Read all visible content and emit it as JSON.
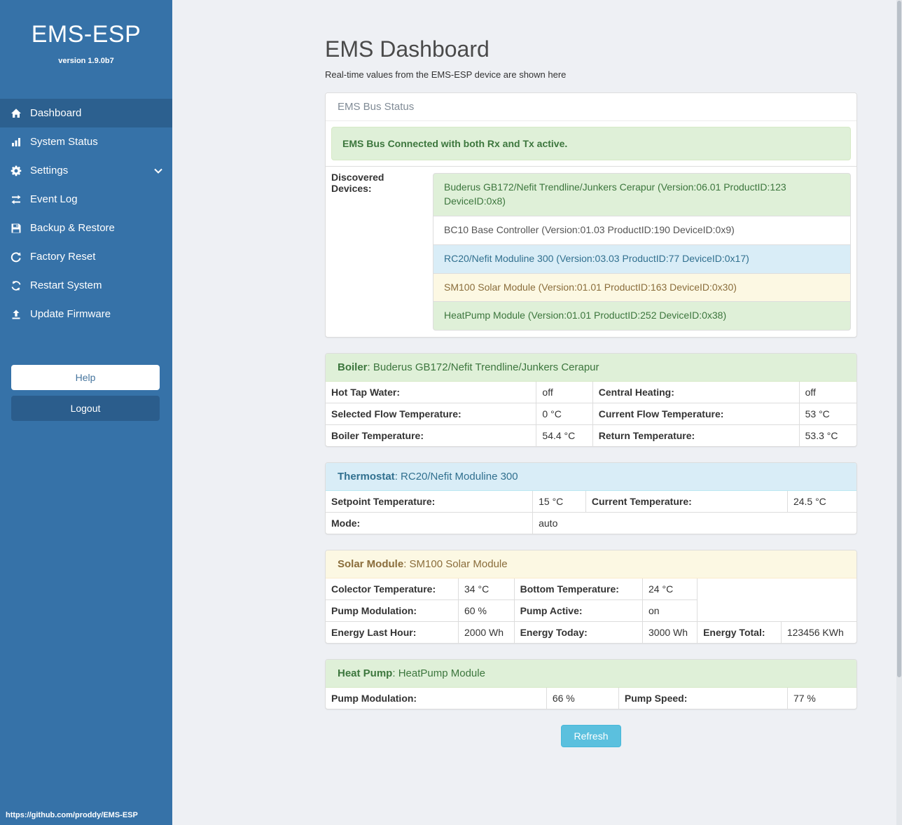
{
  "colors": {
    "sidebar_bg": "#3672a8",
    "sidebar_active_bg": "#2c608f",
    "success_bg": "#dff0d8",
    "success_text": "#3c763d",
    "info_bg": "#d9edf7",
    "info_text": "#31708f",
    "warning_bg": "#fcf8e3",
    "warning_text": "#8a6d3b",
    "refresh_button_bg": "#5bc0de"
  },
  "sidebar": {
    "brand": "EMS-ESP",
    "version": "version 1.9.0b7",
    "items": [
      {
        "label": "Dashboard",
        "icon": "home-icon",
        "active": true
      },
      {
        "label": "System Status",
        "icon": "chart-icon"
      },
      {
        "label": "Settings",
        "icon": "gear-icon",
        "chevron": true
      },
      {
        "label": "Event Log",
        "icon": "exchange-icon"
      },
      {
        "label": "Backup & Restore",
        "icon": "save-icon"
      },
      {
        "label": "Factory Reset",
        "icon": "reset-icon"
      },
      {
        "label": "Restart System",
        "icon": "restart-icon"
      },
      {
        "label": "Update Firmware",
        "icon": "upload-icon"
      }
    ],
    "help_label": "Help",
    "logout_label": "Logout",
    "footer_url": "https://github.com/proddy/EMS-ESP"
  },
  "header": {
    "title": "EMS Dashboard",
    "subtitle": "Real-time values from the EMS-ESP device are shown here"
  },
  "bus": {
    "title": "EMS Bus Status",
    "alert": "EMS Bus Connected with both Rx and Tx active.",
    "devices_label": "Discovered Devices:",
    "devices": [
      {
        "text": "Buderus GB172/Nefit Trendline/Junkers Cerapur (Version:06.01 ProductID:123 DeviceID:0x8)",
        "type": "success"
      },
      {
        "text": "BC10 Base Controller (Version:01.03 ProductID:190 DeviceID:0x9)",
        "type": "default"
      },
      {
        "text": "RC20/Nefit Moduline 300 (Version:03.03 ProductID:77 DeviceID:0x17)",
        "type": "info"
      },
      {
        "text": "SM100 Solar Module (Version:01.01 ProductID:163 DeviceID:0x30)",
        "type": "warning"
      },
      {
        "text": "HeatPump Module (Version:01.01 ProductID:252 DeviceID:0x38)",
        "type": "success"
      }
    ]
  },
  "panels": {
    "boiler": {
      "label": "Boiler",
      "device": ": Buderus GB172/Nefit Trendline/Junkers Cerapur",
      "rows": [
        [
          {
            "t": "Hot Tap Water:",
            "h": true
          },
          {
            "t": "off"
          },
          {
            "t": "Central Heating:",
            "h": true
          },
          {
            "t": "off"
          }
        ],
        [
          {
            "t": "Selected Flow Temperature:",
            "h": true
          },
          {
            "t": "0 °C"
          },
          {
            "t": "Current Flow Temperature:",
            "h": true
          },
          {
            "t": "53 °C"
          }
        ],
        [
          {
            "t": "Boiler Temperature:",
            "h": true
          },
          {
            "t": "54.4 °C"
          },
          {
            "t": "Return Temperature:",
            "h": true
          },
          {
            "t": "53.3 °C"
          }
        ]
      ]
    },
    "thermostat": {
      "label": "Thermostat",
      "device": ": RC20/Nefit Moduline 300",
      "rows": [
        [
          {
            "t": "Setpoint Temperature:",
            "h": true
          },
          {
            "t": "15 °C"
          },
          {
            "t": "Current Temperature:",
            "h": true
          },
          {
            "t": "24.5 °C"
          }
        ],
        [
          {
            "t": "Mode:",
            "h": true
          },
          {
            "t": "auto",
            "cs": 3
          }
        ]
      ]
    },
    "solar": {
      "label": "Solar Module",
      "device": ": SM100 Solar Module",
      "rows": [
        [
          {
            "t": "Colector Temperature:",
            "h": true
          },
          {
            "t": "34 °C"
          },
          {
            "t": "Bottom Temperature:",
            "h": true
          },
          {
            "t": "24 °C"
          },
          {
            "t": "",
            "cs": 2,
            "rs": 2,
            "blank": true
          }
        ],
        [
          {
            "t": "Pump Modulation:",
            "h": true
          },
          {
            "t": "60 %"
          },
          {
            "t": "Pump Active:",
            "h": true
          },
          {
            "t": "on"
          }
        ],
        [
          {
            "t": "Energy Last Hour:",
            "h": true
          },
          {
            "t": "2000 Wh"
          },
          {
            "t": "Energy Today:",
            "h": true
          },
          {
            "t": "3000 Wh"
          },
          {
            "t": "Energy Total:",
            "h": true
          },
          {
            "t": "123456 KWh"
          }
        ]
      ]
    },
    "heatpump": {
      "label": "Heat Pump",
      "device": ": HeatPump Module",
      "rows": [
        [
          {
            "t": "Pump Modulation:",
            "h": true
          },
          {
            "t": "66 %"
          },
          {
            "t": "Pump Speed:",
            "h": true
          },
          {
            "t": "77 %"
          }
        ]
      ]
    }
  },
  "refresh_label": "Refresh"
}
